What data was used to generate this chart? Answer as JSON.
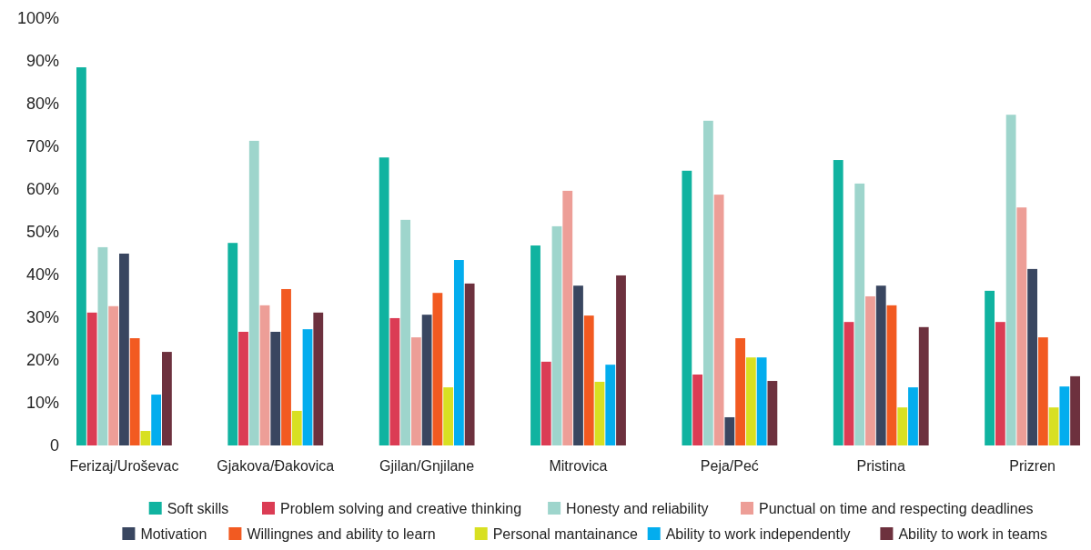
{
  "chart_data": {
    "type": "bar",
    "categories": [
      "Ferizaj/Uroševac",
      "Gjakova/Đakovica",
      "Gjilan/Gnjilane",
      "Mitrovica",
      "Peja/Peć",
      "Pristina",
      "Prizren"
    ],
    "series": [
      {
        "name": "Soft skills",
        "color": "#10b3a0",
        "values": [
          88.5,
          47.4,
          67.4,
          46.8,
          64.3,
          66.8,
          36.2
        ]
      },
      {
        "name": "Problem solving and creative thinking",
        "color": "#db3c54",
        "values": [
          31.1,
          26.6,
          29.8,
          19.6,
          16.6,
          28.9,
          28.9
        ]
      },
      {
        "name": "Honesty and reliability",
        "color": "#9ed5cc",
        "values": [
          46.4,
          71.3,
          52.8,
          51.3,
          76.0,
          61.3,
          77.4
        ]
      },
      {
        "name": "Punctual on time and respecting deadlines",
        "color": "#ed9e97",
        "values": [
          32.6,
          32.8,
          25.3,
          59.6,
          58.7,
          34.9,
          55.7
        ]
      },
      {
        "name": "Motivation",
        "color": "#394660",
        "values": [
          44.9,
          26.6,
          30.6,
          37.4,
          6.6,
          37.4,
          41.3
        ]
      },
      {
        "name": "Willingnes and ability to learn",
        "color": "#f25a21",
        "values": [
          25.1,
          36.6,
          35.7,
          30.4,
          25.1,
          32.8,
          25.3
        ]
      },
      {
        "name": "Personal mantainance",
        "color": "#d8e022",
        "values": [
          3.4,
          8.1,
          13.6,
          14.9,
          20.6,
          8.9,
          8.9
        ]
      },
      {
        "name": "Ability to work independently",
        "color": "#03adee",
        "values": [
          11.9,
          27.2,
          43.4,
          18.9,
          20.6,
          13.6,
          13.8
        ]
      },
      {
        "name": "Ability to work in teams",
        "color": "#6d313e",
        "values": [
          21.9,
          31.1,
          37.9,
          39.8,
          15.1,
          27.7,
          16.2
        ]
      }
    ],
    "ylim": [
      0,
      100
    ],
    "yticks": [
      0,
      {
        "value": 10,
        "label": "10%"
      },
      {
        "value": 20,
        "label": "20%"
      },
      {
        "value": 30,
        "label": "30%"
      },
      {
        "value": 40,
        "label": "40%"
      },
      {
        "value": 50,
        "label": "50%"
      },
      {
        "value": 60,
        "label": "60%"
      },
      {
        "value": 70,
        "label": "70%"
      },
      {
        "value": 80,
        "label": "80%"
      },
      {
        "value": 90,
        "label": "90%"
      },
      {
        "value": 100,
        "label": "100%"
      }
    ],
    "grid": false,
    "legend": "bottom"
  }
}
